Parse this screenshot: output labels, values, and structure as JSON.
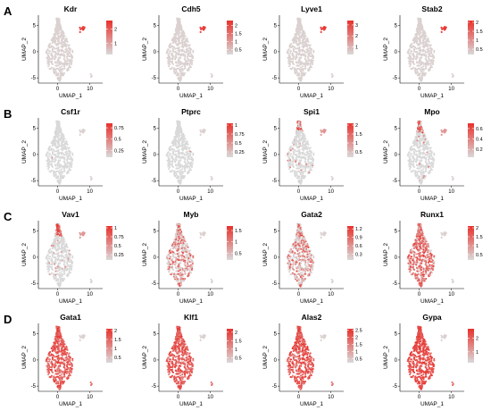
{
  "figure": {
    "row_labels": [
      "A",
      "B",
      "C",
      "D"
    ],
    "axis": {
      "xlabel": "UMAP_1",
      "ylabel": "UMAP_2"
    }
  },
  "colors": {
    "low": "#d9d9d9",
    "high": "#e8312c",
    "axis": "#000000"
  },
  "chart_data": [
    {
      "row": "A",
      "type": "scatter",
      "gene": "Kdr",
      "title": "Kdr",
      "xlabel": "UMAP_1",
      "ylabel": "UMAP_2",
      "xticks": [
        0,
        10
      ],
      "yticks": [
        5,
        0,
        -5
      ],
      "xlim": [
        -6,
        14
      ],
      "ylim": [
        -6,
        7
      ],
      "legend_ticks": [
        2,
        1
      ],
      "legend_range": [
        0.2,
        2.6
      ],
      "expression_pattern": "endothelial"
    },
    {
      "row": "A",
      "type": "scatter",
      "gene": "Cdh5",
      "title": "Cdh5",
      "xlabel": "UMAP_1",
      "ylabel": "UMAP_2",
      "xticks": [
        0,
        10
      ],
      "yticks": [
        5,
        0,
        -5
      ],
      "xlim": [
        -6,
        14
      ],
      "ylim": [
        -6,
        7
      ],
      "legend_ticks": [
        2.0,
        1.5,
        1.0,
        0.5
      ],
      "legend_range": [
        0.2,
        2.3
      ],
      "expression_pattern": "endothelial"
    },
    {
      "row": "A",
      "type": "scatter",
      "gene": "Lyve1",
      "title": "Lyve1",
      "xlabel": "UMAP_1",
      "ylabel": "UMAP_2",
      "xticks": [
        0,
        10
      ],
      "yticks": [
        5,
        0,
        -5
      ],
      "xlim": [
        -6,
        14
      ],
      "ylim": [
        -6,
        7
      ],
      "legend_ticks": [
        3,
        2,
        1
      ],
      "legend_range": [
        0.3,
        3.4
      ],
      "expression_pattern": "endothelial"
    },
    {
      "row": "A",
      "type": "scatter",
      "gene": "Stab2",
      "title": "Stab2",
      "xlabel": "UMAP_1",
      "ylabel": "UMAP_2",
      "xticks": [
        0,
        10
      ],
      "yticks": [
        5,
        0,
        -5
      ],
      "xlim": [
        -6,
        14
      ],
      "ylim": [
        -6,
        7
      ],
      "legend_ticks": [
        2.0,
        1.5,
        1.0,
        0.5
      ],
      "legend_range": [
        0.2,
        2.1
      ],
      "expression_pattern": "endothelial"
    },
    {
      "row": "B",
      "type": "scatter",
      "gene": "Csf1r",
      "title": "Csf1r",
      "xlabel": "UMAP_1",
      "ylabel": "UMAP_2",
      "xticks": [
        0,
        10
      ],
      "yticks": [
        5,
        0,
        -5
      ],
      "xlim": [
        -6,
        14
      ],
      "ylim": [
        -6,
        7
      ],
      "legend_ticks": [
        0.75,
        0.5,
        0.25
      ],
      "legend_range": [
        0.1,
        0.85
      ],
      "expression_pattern": "none"
    },
    {
      "row": "B",
      "type": "scatter",
      "gene": "Ptprc",
      "title": "Ptprc",
      "xlabel": "UMAP_1",
      "ylabel": "UMAP_2",
      "xticks": [
        0,
        10
      ],
      "yticks": [
        5,
        0,
        -5
      ],
      "xlim": [
        -6,
        14
      ],
      "ylim": [
        -6,
        7
      ],
      "legend_ticks": [
        1.0,
        0.75,
        0.5,
        0.25
      ],
      "legend_range": [
        0.1,
        1.05
      ],
      "expression_pattern": "none"
    },
    {
      "row": "B",
      "type": "scatter",
      "gene": "Spi1",
      "title": "Spi1",
      "xlabel": "UMAP_1",
      "ylabel": "UMAP_2",
      "xticks": [
        0,
        10
      ],
      "yticks": [
        5,
        0,
        -5
      ],
      "xlim": [
        -6,
        14
      ],
      "ylim": [
        -6,
        7
      ],
      "legend_ticks": [
        2.0,
        1.5,
        1.0,
        0.5
      ],
      "legend_range": [
        0.2,
        2.1
      ],
      "expression_pattern": "sparse"
    },
    {
      "row": "B",
      "type": "scatter",
      "gene": "Mpo",
      "title": "Mpo",
      "xlabel": "UMAP_1",
      "ylabel": "UMAP_2",
      "xticks": [
        0,
        10
      ],
      "yticks": [
        5,
        0,
        -5
      ],
      "xlim": [
        -6,
        14
      ],
      "ylim": [
        -6,
        7
      ],
      "legend_ticks": [
        0.6,
        0.4,
        0.2
      ],
      "legend_range": [
        0.05,
        0.7
      ],
      "expression_pattern": "sparse"
    },
    {
      "row": "C",
      "type": "scatter",
      "gene": "Vav1",
      "title": "Vav1",
      "xlabel": "UMAP_1",
      "ylabel": "UMAP_2",
      "xticks": [
        0,
        10
      ],
      "yticks": [
        5,
        0,
        -5
      ],
      "xlim": [
        -6,
        14
      ],
      "ylim": [
        -6,
        7
      ],
      "legend_ticks": [
        1.0,
        0.75,
        0.5,
        0.25
      ],
      "legend_range": [
        0.1,
        1.05
      ],
      "expression_pattern": "top"
    },
    {
      "row": "C",
      "type": "scatter",
      "gene": "Myb",
      "title": "Myb",
      "xlabel": "UMAP_1",
      "ylabel": "UMAP_2",
      "xticks": [
        0,
        10
      ],
      "yticks": [
        5,
        0,
        -5
      ],
      "xlim": [
        -6,
        14
      ],
      "ylim": [
        -6,
        7
      ],
      "legend_ticks": [
        1.5,
        1.0,
        0.5
      ],
      "legend_range": [
        0.2,
        1.7
      ],
      "expression_pattern": "moderate"
    },
    {
      "row": "C",
      "type": "scatter",
      "gene": "Gata2",
      "title": "Gata2",
      "xlabel": "UMAP_1",
      "ylabel": "UMAP_2",
      "xticks": [
        0,
        10
      ],
      "yticks": [
        5,
        0,
        -5
      ],
      "xlim": [
        -6,
        14
      ],
      "ylim": [
        -6,
        7
      ],
      "legend_ticks": [
        1.2,
        0.9,
        0.6,
        0.3
      ],
      "legend_range": [
        0.1,
        1.3
      ],
      "expression_pattern": "moderate"
    },
    {
      "row": "C",
      "type": "scatter",
      "gene": "Runx1",
      "title": "Runx1",
      "xlabel": "UMAP_1",
      "ylabel": "UMAP_2",
      "xticks": [
        0,
        10
      ],
      "yticks": [
        5,
        0,
        -5
      ],
      "xlim": [
        -6,
        14
      ],
      "ylim": [
        -6,
        7
      ],
      "legend_ticks": [
        2.0,
        1.5,
        1.0,
        0.5
      ],
      "legend_range": [
        0.2,
        2.1
      ],
      "expression_pattern": "broad"
    },
    {
      "row": "D",
      "type": "scatter",
      "gene": "Gata1",
      "title": "Gata1",
      "xlabel": "UMAP_1",
      "ylabel": "UMAP_2",
      "xticks": [
        0,
        10
      ],
      "yticks": [
        5,
        0,
        -5
      ],
      "xlim": [
        -6,
        14
      ],
      "ylim": [
        -6,
        7
      ],
      "legend_ticks": [
        2.0,
        1.5,
        1.0,
        0.5
      ],
      "legend_range": [
        0.2,
        2.1
      ],
      "expression_pattern": "high"
    },
    {
      "row": "D",
      "type": "scatter",
      "gene": "Klf1",
      "title": "Klf1",
      "xlabel": "UMAP_1",
      "ylabel": "UMAP_2",
      "xticks": [
        0,
        10
      ],
      "yticks": [
        5,
        0,
        -5
      ],
      "xlim": [
        -6,
        14
      ],
      "ylim": [
        -6,
        7
      ],
      "legend_ticks": [
        2.0,
        1.5,
        1.0,
        0.5
      ],
      "legend_range": [
        0.2,
        2.2
      ],
      "expression_pattern": "high"
    },
    {
      "row": "D",
      "type": "scatter",
      "gene": "Alas2",
      "title": "Alas2",
      "xlabel": "UMAP_1",
      "ylabel": "UMAP_2",
      "xticks": [
        0,
        10
      ],
      "yticks": [
        5,
        0,
        -5
      ],
      "xlim": [
        -6,
        14
      ],
      "ylim": [
        -6,
        7
      ],
      "legend_ticks": [
        2.5,
        2.0,
        1.5,
        1.0,
        0.5
      ],
      "legend_range": [
        0.2,
        2.6
      ],
      "expression_pattern": "high"
    },
    {
      "row": "D",
      "type": "scatter",
      "gene": "Gypa",
      "title": "Gypa",
      "xlabel": "UMAP_1",
      "ylabel": "UMAP_2",
      "xticks": [
        0,
        10
      ],
      "yticks": [
        5,
        0,
        -5
      ],
      "xlim": [
        -6,
        14
      ],
      "ylim": [
        -6,
        7
      ],
      "legend_ticks": [
        2,
        1
      ],
      "legend_range": [
        0.2,
        2.7
      ],
      "expression_pattern": "very_high"
    }
  ]
}
